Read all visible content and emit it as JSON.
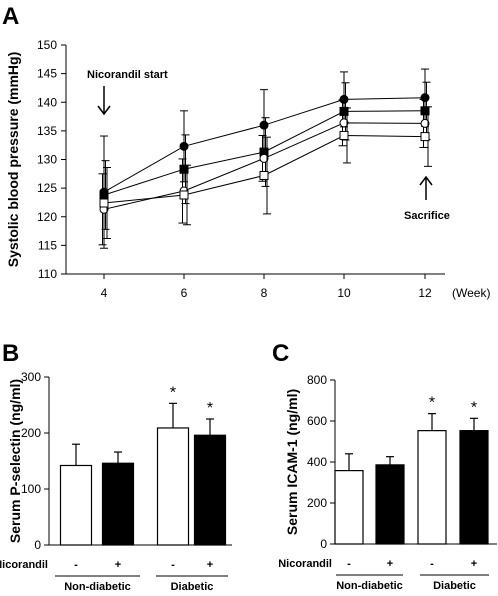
{
  "chart_data": [
    {
      "panel": "A",
      "type": "line",
      "ylabel": "Systolic blood pressure (mmHg)",
      "xunit": "(Week)",
      "x": [
        4,
        6,
        8,
        10,
        12
      ],
      "ylim": [
        110,
        150
      ],
      "yticks": [
        110,
        115,
        120,
        125,
        130,
        135,
        140,
        145,
        150
      ],
      "annotations": [
        "Nicorandil start",
        "Sacrifice"
      ],
      "series": [
        {
          "marker": "filled-circle",
          "values": [
            124.3,
            132.3,
            136.0,
            140.5,
            140.8
          ],
          "err": [
            9.8,
            6.2,
            6.2,
            4.8,
            5.0
          ]
        },
        {
          "marker": "filled-square",
          "values": [
            123.8,
            128.3,
            131.3,
            138.4,
            138.5
          ],
          "err": [
            6.0,
            6.0,
            6.0,
            5.0,
            5.0
          ]
        },
        {
          "marker": "open-circle",
          "values": [
            121.3,
            124.5,
            130.2,
            136.4,
            136.3
          ],
          "err": [
            6.2,
            5.6,
            4.0,
            4.0,
            4.2
          ]
        },
        {
          "marker": "open-square",
          "values": [
            122.4,
            123.8,
            127.2,
            134.2,
            134.0
          ],
          "err": [
            6.2,
            5.2,
            6.7,
            4.8,
            5.2
          ]
        }
      ]
    },
    {
      "panel": "B",
      "type": "bar",
      "ylabel": "Serum P-selectin (ng/ml)",
      "ylim": [
        0,
        300
      ],
      "yticks": [
        0,
        100,
        200,
        300
      ],
      "treatment_label": "Nicorandil",
      "categories": [
        "-",
        "+",
        "-",
        "+"
      ],
      "groups": [
        "Non-diabetic",
        "Diabetic"
      ],
      "fills": [
        "white",
        "black",
        "white",
        "black"
      ],
      "values": [
        142,
        146,
        209,
        196
      ],
      "err": [
        38,
        20,
        44,
        29
      ],
      "significance": [
        "",
        "",
        "*",
        "*"
      ]
    },
    {
      "panel": "C",
      "type": "bar",
      "ylabel": "Serum ICAM-1 (ng/ml)",
      "ylim": [
        0,
        800
      ],
      "yticks": [
        0,
        200,
        400,
        600,
        800
      ],
      "treatment_label": "Nicorandil",
      "categories": [
        "-",
        "+",
        "-",
        "+"
      ],
      "groups": [
        "Non-diabetic",
        "Diabetic"
      ],
      "fills": [
        "white",
        "black",
        "white",
        "black"
      ],
      "values": [
        358,
        386,
        553,
        553
      ],
      "err": [
        82,
        40,
        83,
        60
      ],
      "significance": [
        "",
        "",
        "*",
        "*"
      ]
    }
  ]
}
